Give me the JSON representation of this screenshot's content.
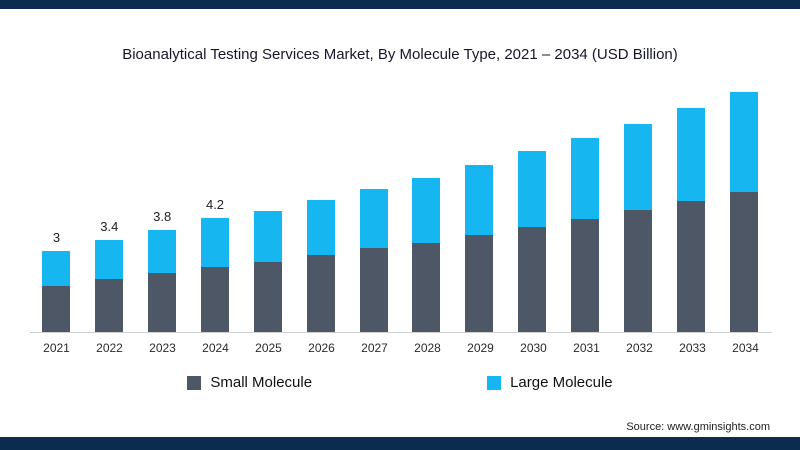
{
  "page": {
    "title": "Bioanalytical Testing Services Market, By Molecule Type, 2021 – 2034 (USD Billion)",
    "source": "Source: www.gminsights.com"
  },
  "colors": {
    "small_molecule": "#4d5766",
    "large_molecule": "#16b6f0",
    "frame_navy": "#0b2b4f",
    "axis_line": "#cfcfcf"
  },
  "legend": [
    {
      "label": "Small Molecule",
      "color": "#4d5766"
    },
    {
      "label": "Large Molecule",
      "color": "#16b6f0"
    }
  ],
  "chart_data": {
    "type": "bar",
    "stacked": true,
    "title": "Bioanalytical Testing Services Market, By Molecule Type, 2021 – 2034 (USD Billion)",
    "xlabel": "",
    "ylabel": "USD Billion",
    "y_axis_visible": false,
    "grid": false,
    "legend_position": "bottom",
    "categories": [
      "2021",
      "2022",
      "2023",
      "2024",
      "2025",
      "2026",
      "2027",
      "2028",
      "2029",
      "2030",
      "2031",
      "2032",
      "2033",
      "2034"
    ],
    "series": [
      {
        "name": "Small Molecule",
        "color": "#4d5766",
        "values": [
          1.7,
          1.95,
          2.2,
          2.4,
          2.6,
          2.85,
          3.1,
          3.3,
          3.6,
          3.9,
          4.2,
          4.5,
          4.85,
          5.2
        ]
      },
      {
        "name": "Large Molecule",
        "color": "#16b6f0",
        "values": [
          1.3,
          1.45,
          1.6,
          1.8,
          1.9,
          2.05,
          2.2,
          2.4,
          2.6,
          2.8,
          3.0,
          3.2,
          3.45,
          3.7
        ]
      }
    ],
    "totals": [
      3.0,
      3.4,
      3.8,
      4.2,
      4.5,
      4.9,
      5.3,
      5.7,
      6.2,
      6.7,
      7.2,
      7.7,
      8.3,
      8.9
    ],
    "data_labels": [
      "3",
      "3.4",
      "3.8",
      "4.2",
      "",
      "",
      "",
      "",
      "",
      "",
      "",
      "",
      "",
      ""
    ],
    "ylim": [
      0,
      9.4
    ]
  }
}
